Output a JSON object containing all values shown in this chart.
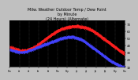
{
  "title": "Milw. Weather Outdoor Temp / Dew Point\nby Minute\n(24 Hours) (Alternate)",
  "title_fontsize": 3.5,
  "bg_color": "#c0c0c0",
  "plot_bg": "#000000",
  "grid_color": "#555555",
  "line1_color": "#ff2020",
  "line2_color": "#4444ff",
  "line_width": 0.6,
  "marker_size": 0.5,
  "ylim": [
    10,
    75
  ],
  "xlim": [
    0,
    1440
  ],
  "yticks": [
    10,
    20,
    30,
    40,
    50,
    60,
    70
  ],
  "ytick_labels": [
    "10",
    "20",
    "30",
    "40",
    "50",
    "60",
    "70"
  ],
  "num_points": 1440,
  "temp_data": [
    38,
    37,
    37,
    36,
    36,
    35,
    35,
    34,
    34,
    34,
    33,
    33,
    33,
    33,
    33,
    33,
    33,
    33,
    34,
    34,
    35,
    35,
    36,
    36,
    37,
    37,
    38,
    39,
    40,
    41,
    42,
    43,
    44,
    45,
    46,
    47,
    48,
    49,
    50,
    51,
    52,
    53,
    54,
    55,
    56,
    57,
    57,
    58,
    59,
    60,
    61,
    61,
    62,
    63,
    63,
    64,
    64,
    65,
    65,
    65,
    66,
    66,
    66,
    66,
    67,
    67,
    67,
    67,
    67,
    67,
    67,
    67,
    67,
    66,
    66,
    66,
    66,
    65,
    65,
    65,
    64,
    64,
    63,
    63,
    62,
    61,
    61,
    60,
    59,
    58,
    57,
    56,
    55,
    54,
    53,
    52,
    51,
    50,
    49,
    48,
    47,
    46,
    45,
    44,
    43,
    42,
    41,
    40,
    39,
    38,
    37,
    36,
    35,
    34,
    33,
    32,
    31,
    30,
    29,
    28
  ],
  "dew_data": [
    34,
    34,
    33,
    33,
    33,
    32,
    32,
    32,
    31,
    31,
    31,
    31,
    31,
    31,
    31,
    31,
    32,
    32,
    32,
    33,
    33,
    34,
    34,
    35,
    35,
    36,
    36,
    37,
    37,
    38,
    38,
    39,
    39,
    40,
    40,
    41,
    41,
    42,
    42,
    43,
    43,
    44,
    44,
    45,
    45,
    46,
    46,
    47,
    47,
    48,
    48,
    49,
    49,
    50,
    50,
    50,
    51,
    51,
    51,
    51,
    52,
    52,
    52,
    52,
    52,
    52,
    52,
    51,
    51,
    51,
    50,
    50,
    49,
    49,
    48,
    48,
    47,
    46,
    45,
    44,
    43,
    42,
    41,
    40,
    39,
    38,
    37,
    36,
    35,
    34,
    33,
    32,
    31,
    30,
    29,
    28,
    27,
    26,
    25,
    24,
    23,
    22,
    21,
    20,
    19,
    18,
    17,
    17,
    16,
    15,
    14,
    14,
    13,
    12,
    12,
    11,
    11,
    10,
    10,
    10
  ]
}
